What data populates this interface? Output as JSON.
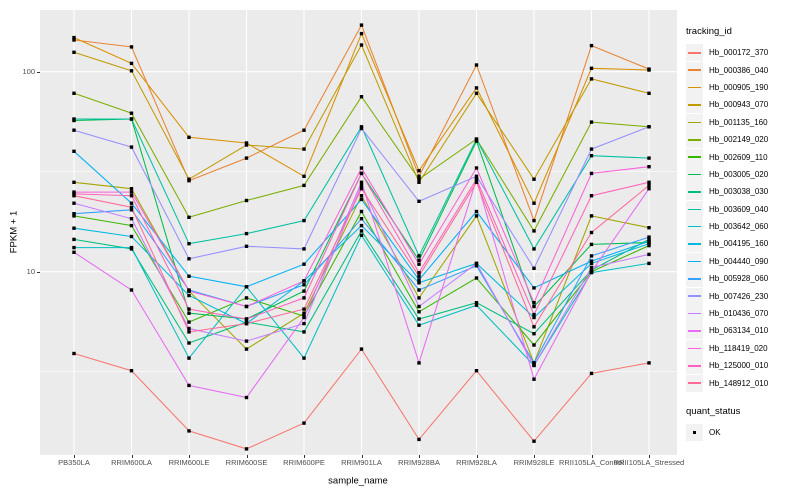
{
  "chart_data": {
    "type": "line",
    "title": "",
    "xlabel": "sample_name",
    "ylabel": "FPKM + 1",
    "y_scale": "log10",
    "ylim": [
      1.2,
      204
    ],
    "y_ticks": [
      100,
      10
    ],
    "y_minor": [
      31.62,
      3.162
    ],
    "grid": "on",
    "legend_position": "right",
    "legend_title": "tracking_id",
    "legend2_title": "quant_status",
    "quant_status": [
      {
        "label": "OK",
        "marker": "black-square"
      }
    ],
    "point_color": "#000000",
    "panel_bg": "#EBEBEB",
    "grid_color": "#FFFFFF",
    "key_bg": "#F2F2F2",
    "axis_text_color": "#4D4D4D",
    "categories": [
      "PB350LA",
      "RRIM600LA",
      "RRIM600LE",
      "RRIM600SE",
      "RRIM600PE",
      "RRIM901LA",
      "RRIM928BA",
      "RRIM928LA",
      "RRIM928LE",
      "RRII105LA_Control",
      "RRII105LA_Stressed"
    ],
    "series": [
      {
        "name": "Hb_000172_370",
        "color": "#F8766D",
        "values": [
          3.9,
          3.2,
          1.6,
          1.3,
          1.75,
          4.1,
          1.45,
          3.2,
          1.42,
          3.1,
          3.5
        ]
      },
      {
        "name": "Hb_000386_040",
        "color": "#EA8331",
        "values": [
          144,
          133,
          28.5,
          37,
          51,
          171,
          30,
          108,
          18,
          135,
          103
        ]
      },
      {
        "name": "Hb_000905_190",
        "color": "#D89000",
        "values": [
          148,
          110,
          47,
          44,
          30,
          155,
          32,
          83,
          22,
          104,
          102
        ]
      },
      {
        "name": "Hb_000943_070",
        "color": "#C09B00",
        "values": [
          125,
          101,
          29,
          43,
          41,
          136,
          28,
          78,
          29,
          92,
          78
        ]
      },
      {
        "name": "Hb_001135_160",
        "color": "#A3A500",
        "values": [
          28,
          26,
          8,
          4.1,
          6.2,
          24,
          7.4,
          19,
          3.5,
          19,
          16.6
        ]
      },
      {
        "name": "Hb_002149_020",
        "color": "#7CAE00",
        "values": [
          78,
          62,
          18.7,
          22.7,
          27,
          75,
          29,
          46,
          16,
          56,
          53
        ]
      },
      {
        "name": "Hb_002609_110",
        "color": "#39B600",
        "values": [
          19,
          17,
          5.6,
          7.4,
          6,
          20,
          6.3,
          9.3,
          4.3,
          10,
          13.5
        ]
      },
      {
        "name": "Hb_003005_020",
        "color": "#00BB4E",
        "values": [
          57,
          58,
          6.2,
          5.8,
          8,
          31,
          11.4,
          45,
          6.7,
          13.7,
          14
        ]
      },
      {
        "name": "Hb_003038_030",
        "color": "#00BF7D",
        "values": [
          14.5,
          13,
          4.4,
          5.6,
          5,
          16,
          5.8,
          7,
          4.9,
          10.2,
          14.5
        ]
      },
      {
        "name": "Hb_003609_040",
        "color": "#00C1A3",
        "values": [
          58,
          58,
          13.8,
          15.5,
          18,
          53,
          12,
          46,
          13,
          38,
          37
        ]
      },
      {
        "name": "Hb_003642_060",
        "color": "#00BFC4",
        "values": [
          13.2,
          13.2,
          3.7,
          8.4,
          3.7,
          15.2,
          5.4,
          6.8,
          3.4,
          9.9,
          11
        ]
      },
      {
        "name": "Hb_004195_160",
        "color": "#00BAE0",
        "values": [
          16.5,
          15,
          7.6,
          5.5,
          9,
          17,
          8.8,
          11,
          5.9,
          11,
          13.8
        ]
      },
      {
        "name": "Hb_004440_090",
        "color": "#00B0F6",
        "values": [
          40,
          22,
          9.5,
          8.4,
          10.9,
          23,
          9.1,
          20,
          8.3,
          11.3,
          14.2
        ]
      },
      {
        "name": "Hb_005928_060",
        "color": "#35A2FF",
        "values": [
          19.5,
          20.4,
          8.1,
          6.7,
          8.6,
          18.4,
          8.1,
          10.7,
          3.5,
          12,
          14.9
        ]
      },
      {
        "name": "Hb_007426_230",
        "color": "#9590FF",
        "values": [
          51,
          42,
          11.6,
          13.4,
          13,
          52,
          22.5,
          30,
          10.4,
          41,
          53
        ]
      },
      {
        "name": "Hb_010436_070",
        "color": "#C77CFF",
        "values": [
          22,
          18.4,
          5.2,
          4.5,
          5.5,
          27,
          6.7,
          11,
          3.4,
          10.5,
          12.2
        ]
      },
      {
        "name": "Hb_063134_010",
        "color": "#E76BF3",
        "values": [
          12.5,
          8.1,
          2.7,
          2.35,
          5.9,
          28,
          3.5,
          29,
          2.9,
          10,
          26
        ]
      },
      {
        "name": "Hb_118419_020",
        "color": "#FA62DB",
        "values": [
          25,
          25,
          8,
          6.7,
          9,
          33,
          10.9,
          33,
          7,
          31,
          33.5
        ]
      },
      {
        "name": "Hb_125000_010",
        "color": "#FF62BC",
        "values": [
          24.5,
          24,
          6.5,
          5.8,
          7.4,
          31,
          9.9,
          29,
          6.1,
          24,
          28
        ]
      },
      {
        "name": "Hb_148912_010",
        "color": "#FF6A98",
        "values": [
          24,
          21,
          5,
          5.5,
          6.5,
          26,
          9.5,
          28,
          5.3,
          15.7,
          27
        ]
      }
    ]
  }
}
